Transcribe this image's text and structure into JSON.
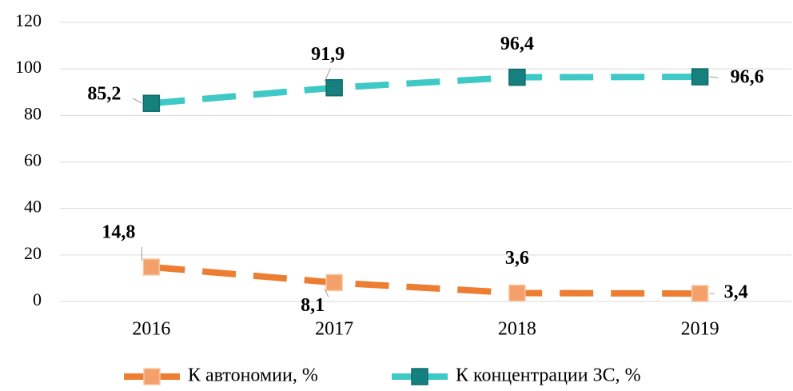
{
  "chart_data": {
    "type": "line",
    "categories": [
      "2016",
      "2017",
      "2018",
      "2019"
    ],
    "series": [
      {
        "name": "К автономии, %",
        "color": "#ED7D31",
        "marker_color": "#F4A06A",
        "values": [
          14.8,
          8.1,
          3.6,
          3.4
        ],
        "value_labels": [
          "14,8",
          "8,1",
          "3,6",
          "3,4"
        ]
      },
      {
        "name": "К концентрации ЗС, %",
        "color": "#3EC9C6",
        "marker_color": "#16807E",
        "values": [
          85.2,
          91.9,
          96.4,
          96.6
        ],
        "value_labels": [
          "85,2",
          "91,9",
          "96,4",
          "96,6"
        ]
      }
    ],
    "ylim": [
      0,
      120
    ],
    "yticks": [
      0,
      20,
      40,
      60,
      80,
      100,
      120
    ],
    "grid": true,
    "legend": "bottom"
  }
}
